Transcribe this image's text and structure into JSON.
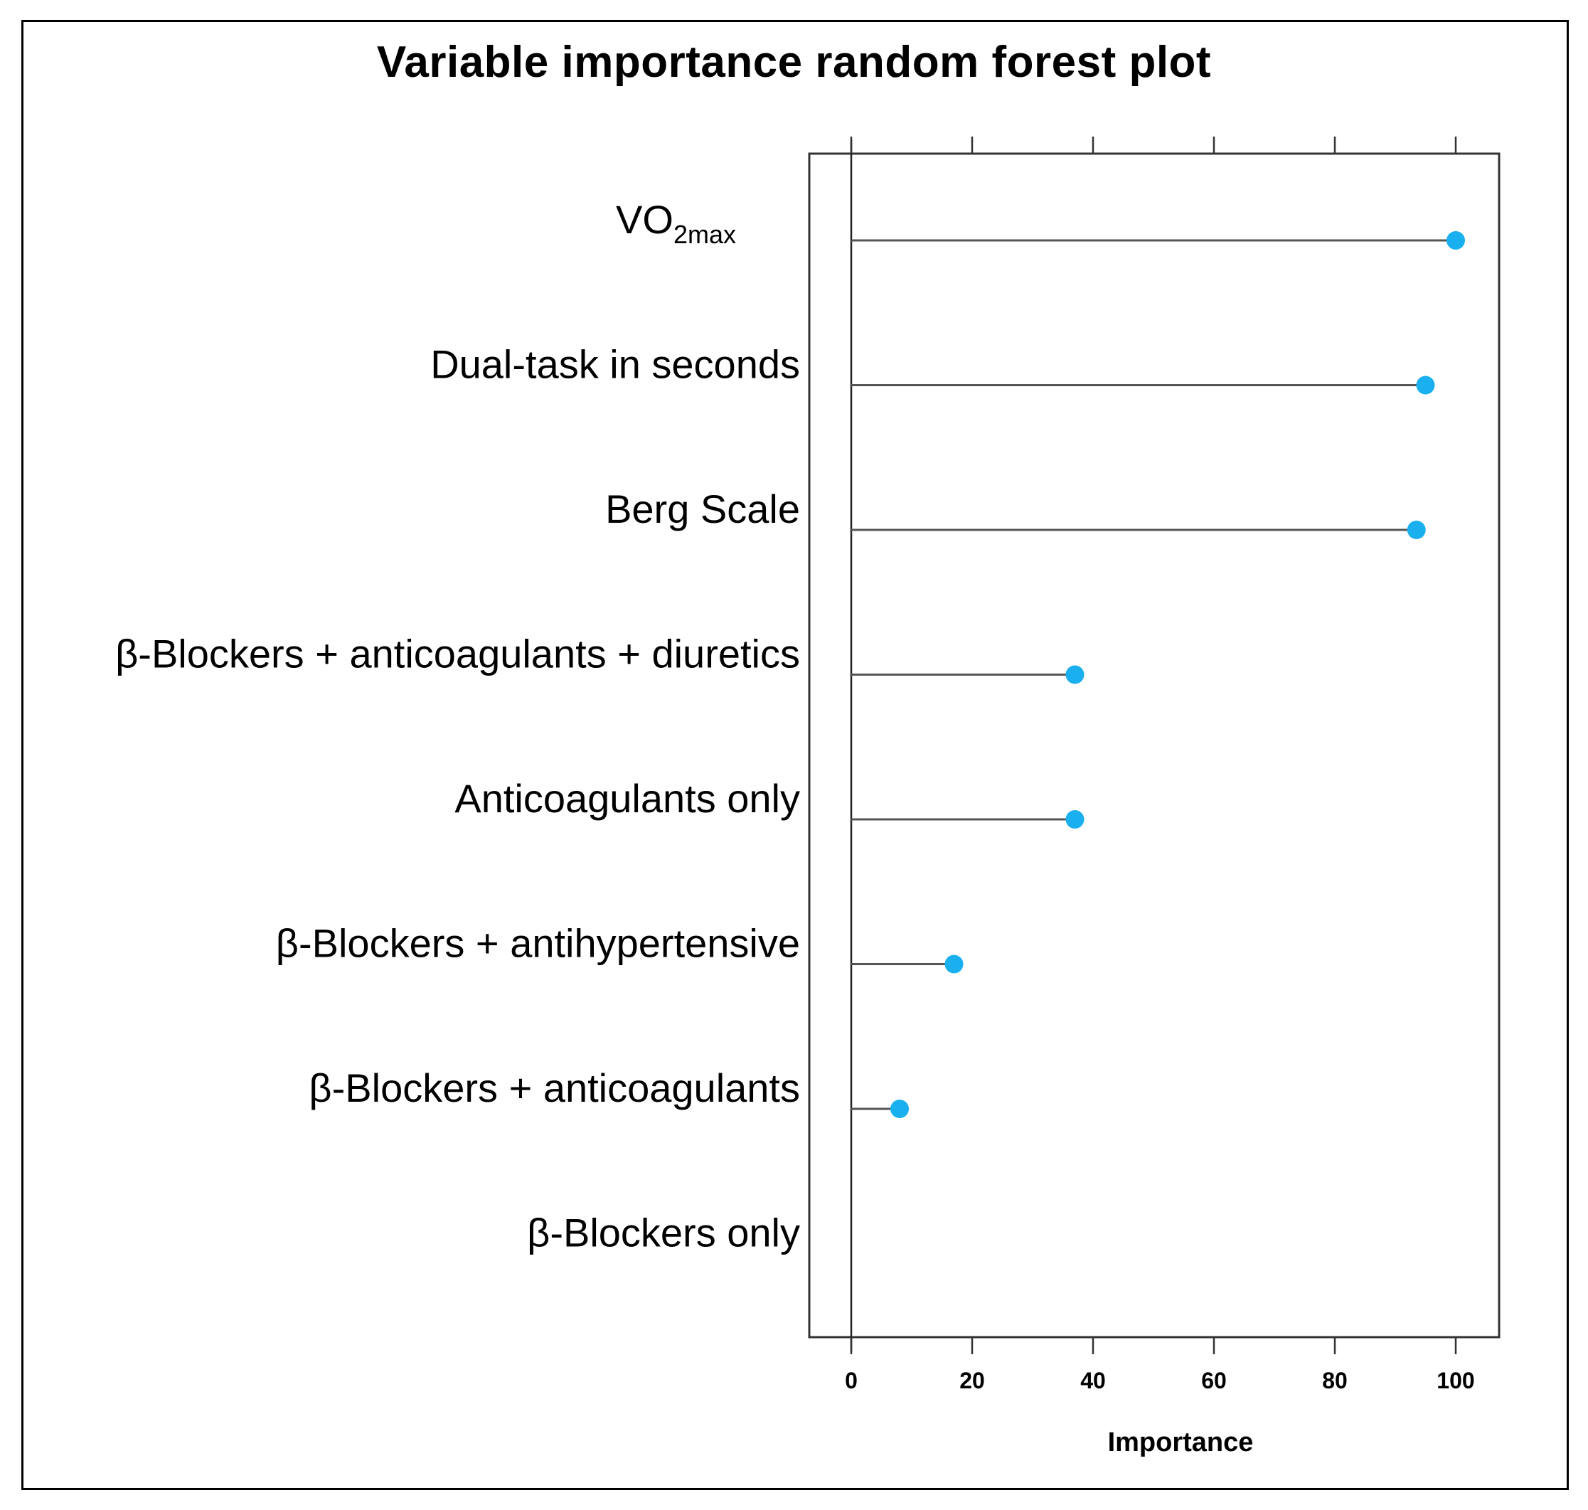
{
  "chart_data": {
    "type": "lollipop",
    "title": "Variable importance random forest plot",
    "xlabel": "Importance",
    "ylabel": "",
    "xlim": [
      -7,
      107
    ],
    "xticks": [
      0,
      20,
      40,
      60,
      80,
      100
    ],
    "grid": false,
    "categories": [
      {
        "label": "VO",
        "subscript": "2max",
        "value": 100
      },
      {
        "label": "Dual-task in seconds",
        "subscript": "",
        "value": 95
      },
      {
        "label": "Berg Scale",
        "subscript": "",
        "value": 93.5
      },
      {
        "label": "β-Blockers + anticoagulants + diuretics",
        "subscript": "",
        "value": 37
      },
      {
        "label": "Anticoagulants only",
        "subscript": "",
        "value": 37
      },
      {
        "label": "β-Blockers + antihypertensive",
        "subscript": "",
        "value": 17
      },
      {
        "label": "β-Blockers + anticoagulants",
        "subscript": "",
        "value": 8
      },
      {
        "label": "β-Blockers only",
        "subscript": "",
        "value": 0
      }
    ],
    "marker_color": "#1ab0f0",
    "line_color": "#555555"
  }
}
